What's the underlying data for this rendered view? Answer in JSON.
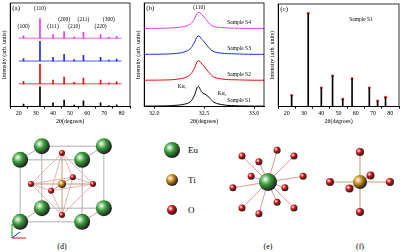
{
  "chart_data": [
    {
      "type": "bar",
      "label": "(a)",
      "x_label": "2θ(degrees)",
      "y_label": "Intensity (arb. units)",
      "x": [
        22.8,
        32.4,
        40.0,
        46.5,
        52.4,
        57.8,
        67.8,
        72.6,
        77.2
      ],
      "series": [
        {
          "color": "#000000",
          "baseline": 0,
          "values": [
            0.12,
            0.95,
            0.18,
            0.32,
            0.07,
            0.28,
            0.18,
            0.05,
            0.09
          ]
        },
        {
          "color": "#e01010",
          "baseline": 1.1,
          "values": [
            1.22,
            2.05,
            1.28,
            1.42,
            1.17,
            1.38,
            1.28,
            1.15,
            1.19
          ]
        },
        {
          "color": "#1a2ee0",
          "baseline": 2.2,
          "values": [
            2.32,
            3.15,
            2.38,
            2.52,
            2.27,
            2.48,
            2.38,
            2.25,
            2.29
          ]
        },
        {
          "color": "#e040e0",
          "baseline": 3.3,
          "values": [
            3.42,
            4.25,
            3.48,
            3.62,
            3.37,
            3.58,
            3.48,
            3.35,
            3.39
          ]
        }
      ],
      "xlim": [
        20,
        80
      ],
      "xticks": [
        20,
        30,
        40,
        50,
        60,
        70,
        80
      ],
      "ylim": [
        0,
        5
      ],
      "tick_labels": "x",
      "grid": false,
      "annotations": [
        {
          "text": "(100)",
          "x": 22.8,
          "y": 3.75
        },
        {
          "text": "(110)",
          "x": 32.4,
          "y": 4.6
        },
        {
          "text": "(111)",
          "x": 40.0,
          "y": 3.75
        },
        {
          "text": "(200)",
          "x": 46.5,
          "y": 4.05
        },
        {
          "text": "(210)",
          "x": 52.4,
          "y": 3.75
        },
        {
          "text": "(211)",
          "x": 57.8,
          "y": 4.05
        },
        {
          "text": "(220)",
          "x": 67.8,
          "y": 3.75
        },
        {
          "text": "(300)",
          "x": 72.6,
          "y": 4.05
        }
      ]
    },
    {
      "type": "line",
      "label": "(b)",
      "x_label": "2θ(degrees)",
      "y_label": "Intensity (arb. units)",
      "x": [
        31.9,
        32.1,
        32.2,
        32.3,
        32.36,
        32.4,
        32.44,
        32.48,
        32.52,
        32.56,
        32.6,
        32.7,
        32.8,
        33.0,
        33.1
      ],
      "series": [
        {
          "color": "#000000",
          "values": [
            0.02,
            0.03,
            0.05,
            0.1,
            0.2,
            0.45,
            0.85,
            0.6,
            0.5,
            0.35,
            0.18,
            0.07,
            0.04,
            0.02,
            0.02
          ]
        },
        {
          "color": "#e01010",
          "values": [
            1.12,
            1.13,
            1.15,
            1.22,
            1.35,
            1.6,
            1.95,
            1.8,
            1.6,
            1.4,
            1.25,
            1.16,
            1.14,
            1.12,
            1.12
          ]
        },
        {
          "color": "#1a2ee0",
          "values": [
            2.22,
            2.23,
            2.25,
            2.32,
            2.45,
            2.7,
            3.0,
            2.85,
            2.65,
            2.45,
            2.33,
            2.26,
            2.24,
            2.22,
            2.22
          ]
        },
        {
          "color": "#e040e0",
          "values": [
            3.32,
            3.33,
            3.35,
            3.4,
            3.5,
            3.7,
            4.0,
            3.9,
            3.7,
            3.5,
            3.4,
            3.35,
            3.33,
            3.32,
            3.32
          ]
        }
      ],
      "xlim": [
        31.9,
        33.1
      ],
      "xticks": [
        {
          "value": 32,
          "label": "32.0"
        },
        {
          "value": 32.5,
          "label": "32.5"
        },
        {
          "value": 33,
          "label": "33.0"
        }
      ],
      "ylim": [
        0,
        4.4
      ],
      "tick_labels": "x",
      "grid": false,
      "annotations": [
        {
          "text": "(110)",
          "x": 32.45,
          "y": 4.1
        },
        {
          "text": "Sample S4",
          "x": 32.85,
          "y": 3.45
        },
        {
          "text": "Sample S3",
          "x": 32.85,
          "y": 2.35
        },
        {
          "text": "Sample S2",
          "x": 32.85,
          "y": 1.25
        },
        {
          "text": "Sample S1",
          "x": 32.85,
          "y": 0.15
        },
        {
          "text": "Kα₁",
          "x": 32.28,
          "y": 0.75
        },
        {
          "text": "Kα₂",
          "x": 32.68,
          "y": 0.45
        }
      ]
    },
    {
      "type": "bar",
      "label": "(c)",
      "x_label": "2θ(degrees)",
      "y_label": "Intensity (arb. units)",
      "x": [
        22.8,
        32.4,
        40.0,
        46.5,
        52.4,
        57.8,
        67.8,
        72.6,
        77.2
      ],
      "series": [
        {
          "type": "bar",
          "color": "#000000",
          "values": [
            0.12,
            1.0,
            0.2,
            0.33,
            0.08,
            0.3,
            0.2,
            0.06,
            0.1
          ]
        },
        {
          "type": "scatter",
          "color": "#ff2020",
          "marker": "circle",
          "values": [
            0.12,
            1.0,
            0.2,
            0.33,
            0.08,
            0.3,
            0.2,
            0.06,
            0.1
          ]
        }
      ],
      "xlim": [
        20,
        80
      ],
      "xticks": [
        20,
        30,
        40,
        50,
        60,
        70,
        80
      ],
      "ylim": [
        0,
        1.1
      ],
      "tick_labels": "x",
      "grid": false,
      "annotations": [
        {
          "text": "Sample S1",
          "x": 63,
          "y": 0.9
        }
      ]
    }
  ],
  "diagram": {
    "panels": [
      {
        "label": "(d)"
      },
      {
        "label": "(e)"
      },
      {
        "label": "(f)"
      }
    ],
    "legend": [
      {
        "text": "Eu",
        "color": "#3aa03a"
      },
      {
        "text": "Ti",
        "color": "#c88a1a"
      },
      {
        "text": "O",
        "color": "#d01010"
      }
    ]
  }
}
